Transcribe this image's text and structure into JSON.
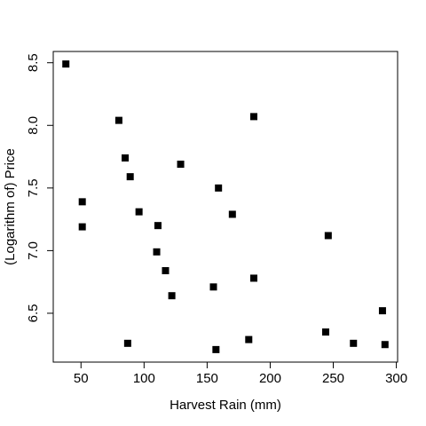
{
  "chart_data": {
    "type": "scatter",
    "x_label": "Harvest Rain (mm)",
    "y_label": "(Logarithm of) Price",
    "x": [
      38,
      80,
      187,
      85,
      89,
      129,
      51,
      96,
      159,
      170,
      51,
      111,
      246,
      110,
      117,
      187,
      122,
      155,
      289,
      87,
      157,
      183,
      244,
      266,
      291
    ],
    "y": [
      8.49,
      8.04,
      8.07,
      7.74,
      7.59,
      7.69,
      7.39,
      7.31,
      7.5,
      7.29,
      7.19,
      7.2,
      7.12,
      6.99,
      6.84,
      6.78,
      6.64,
      6.71,
      6.52,
      6.26,
      6.21,
      6.29,
      6.35,
      6.26,
      6.25
    ],
    "color": "#000000",
    "xlim": [
      28,
      301
    ],
    "ylim": [
      6.11,
      8.59
    ],
    "xticks": [
      50,
      100,
      150,
      200,
      250,
      300
    ],
    "yticks": [
      6.5,
      7.0,
      7.5,
      8.0,
      8.5
    ]
  }
}
